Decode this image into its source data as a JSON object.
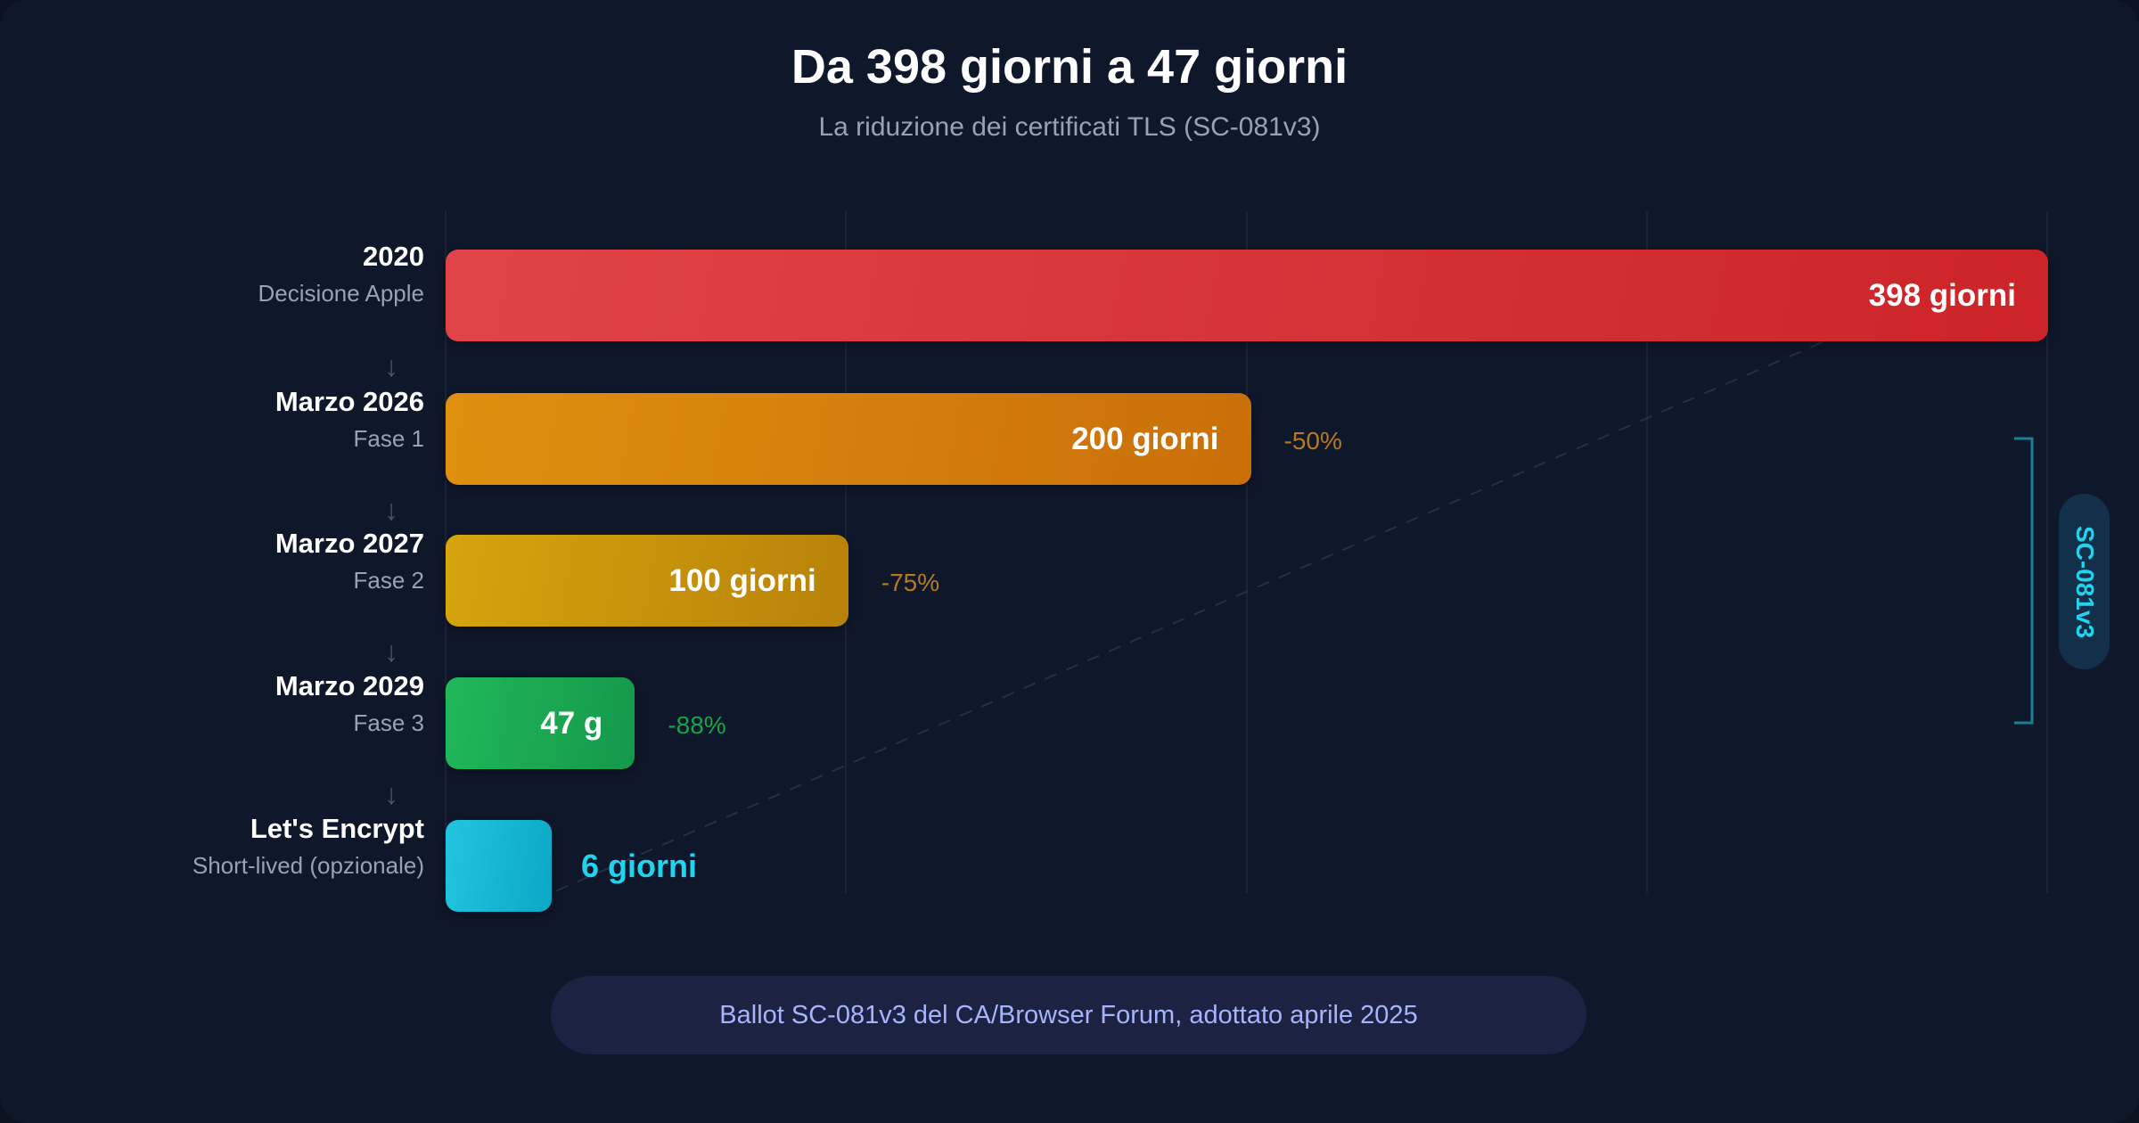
{
  "title": "Da 398 giorni a 47 giorni",
  "subtitle": "La riduzione dei certificati TLS (SC-081v3)",
  "chart_data": {
    "type": "bar",
    "orientation": "horizontal",
    "title": "Da 398 giorni a 47 giorni",
    "subtitle": "La riduzione dei certificati TLS (SC-081v3)",
    "categories": [
      "2020",
      "Marzo 2026",
      "Marzo 2027",
      "Marzo 2029",
      "Let's Encrypt"
    ],
    "sublabels": [
      "Decisione Apple",
      "Fase 1",
      "Fase 2",
      "Fase 3",
      "Short-lived (opzionale)"
    ],
    "values": [
      398,
      200,
      100,
      47,
      6
    ],
    "value_labels": [
      "398 giorni",
      "200 giorni",
      "100 giorni",
      "47 g",
      "6 giorni"
    ],
    "change_labels": [
      "",
      "-50%",
      "-75%",
      "-88%",
      ""
    ],
    "colors": [
      "#dc2626",
      "#d97706",
      "#ca8a04",
      "#16a34a",
      "#06b6d4"
    ],
    "change_colors": [
      "",
      "#b7791f",
      "#b7791f",
      "#16a34a",
      ""
    ],
    "xlim": [
      0,
      398
    ],
    "grid": true
  },
  "bracket_label": "SC-081v3",
  "footer": "Ballot SC-081v3 del CA/Browser Forum, adottato aprile 2025"
}
